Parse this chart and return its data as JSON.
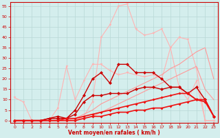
{
  "xlabel": "Vent moyen/en rafales ( km/h )",
  "ylabel": "",
  "background_color": "#d4eeed",
  "grid_color": "#b8d8d5",
  "xlim": [
    -0.5,
    23.5
  ],
  "ylim": [
    -1,
    57
  ],
  "yticks": [
    0,
    5,
    10,
    15,
    20,
    25,
    30,
    35,
    40,
    45,
    50,
    55
  ],
  "xticks": [
    0,
    1,
    2,
    3,
    4,
    5,
    6,
    7,
    8,
    9,
    10,
    11,
    12,
    13,
    14,
    15,
    16,
    17,
    18,
    19,
    20,
    21,
    22,
    23
  ],
  "lines": [
    {
      "x": [
        0,
        1,
        2,
        3,
        4,
        5,
        6,
        7,
        8,
        9,
        10,
        11,
        12,
        13,
        14,
        15,
        16,
        17,
        18,
        19,
        20,
        21,
        22,
        23
      ],
      "y": [
        0,
        0,
        0,
        0,
        0,
        0,
        0,
        0,
        2,
        9,
        40,
        46,
        55,
        56,
        44,
        41,
        42,
        44,
        35,
        40,
        39,
        25,
        0,
        0
      ],
      "color": "#ffb3b3",
      "lw": 0.8,
      "marker": "v",
      "ms": 2.5,
      "alpha": 1.0
    },
    {
      "x": [
        0,
        1,
        2,
        3,
        4,
        5,
        6,
        7,
        8,
        9,
        10,
        11,
        12,
        13,
        14,
        15,
        16,
        17,
        18,
        19,
        20,
        21,
        22,
        23
      ],
      "y": [
        11,
        9,
        0,
        0,
        0,
        6,
        26,
        10,
        19,
        27,
        27,
        24,
        22,
        23,
        22,
        21,
        22,
        20,
        35,
        16,
        10,
        19,
        0,
        0
      ],
      "color": "#ffb3b3",
      "lw": 0.8,
      "marker": "v",
      "ms": 2.5,
      "alpha": 1.0
    },
    {
      "x": [
        0,
        1,
        2,
        3,
        4,
        5,
        6,
        7,
        8,
        9,
        10,
        11,
        12,
        13,
        14,
        15,
        16,
        17,
        18,
        19,
        20,
        21,
        22,
        23
      ],
      "y": [
        0,
        0,
        0,
        0,
        0,
        0,
        0,
        1,
        3,
        5,
        8,
        10,
        12,
        14,
        16,
        18,
        20,
        22,
        25,
        27,
        30,
        33,
        35,
        20
      ],
      "color": "#ff9999",
      "lw": 0.8,
      "marker": null,
      "ms": 0,
      "alpha": 1.0
    },
    {
      "x": [
        0,
        1,
        2,
        3,
        4,
        5,
        6,
        7,
        8,
        9,
        10,
        11,
        12,
        13,
        14,
        15,
        16,
        17,
        18,
        19,
        20,
        21,
        22,
        23
      ],
      "y": [
        0,
        0,
        0,
        0,
        0,
        0,
        0,
        0,
        1,
        2,
        4,
        6,
        8,
        10,
        12,
        14,
        16,
        18,
        20,
        22,
        24,
        26,
        15,
        10
      ],
      "color": "#ff9999",
      "lw": 0.8,
      "marker": null,
      "ms": 0,
      "alpha": 1.0
    },
    {
      "x": [
        0,
        1,
        2,
        3,
        4,
        5,
        6,
        7,
        8,
        9,
        10,
        11,
        12,
        13,
        14,
        15,
        16,
        17,
        18,
        19,
        20,
        21,
        22,
        23
      ],
      "y": [
        0,
        0,
        0,
        0,
        1,
        1,
        1,
        5,
        12,
        20,
        23,
        18,
        27,
        27,
        23,
        23,
        23,
        20,
        16,
        16,
        13,
        16,
        10,
        2
      ],
      "color": "#cc0000",
      "lw": 1.0,
      "marker": "D",
      "ms": 2.5,
      "alpha": 1.0
    },
    {
      "x": [
        0,
        1,
        2,
        3,
        4,
        5,
        6,
        7,
        8,
        9,
        10,
        11,
        12,
        13,
        14,
        15,
        16,
        17,
        18,
        19,
        20,
        21,
        22,
        23
      ],
      "y": [
        0,
        0,
        0,
        0,
        1,
        2,
        1,
        3,
        9,
        12,
        12,
        13,
        13,
        13,
        15,
        16,
        16,
        15,
        16,
        16,
        13,
        10,
        10,
        2
      ],
      "color": "#cc0000",
      "lw": 1.0,
      "marker": "D",
      "ms": 2.5,
      "alpha": 1.0
    },
    {
      "x": [
        0,
        1,
        2,
        3,
        4,
        5,
        6,
        7,
        8,
        9,
        10,
        11,
        12,
        13,
        14,
        15,
        16,
        17,
        18,
        19,
        20,
        21,
        22,
        23
      ],
      "y": [
        0,
        0,
        0,
        0,
        0,
        0,
        1,
        1,
        2,
        3,
        4,
        5,
        6,
        7,
        8,
        9,
        10,
        11,
        12,
        13,
        13,
        10,
        10,
        2
      ],
      "color": "#ee1111",
      "lw": 1.2,
      "marker": "D",
      "ms": 2.0,
      "alpha": 1.0
    },
    {
      "x": [
        0,
        1,
        2,
        3,
        4,
        5,
        6,
        7,
        8,
        9,
        10,
        11,
        12,
        13,
        14,
        15,
        16,
        17,
        18,
        19,
        20,
        21,
        22,
        23
      ],
      "y": [
        0,
        0,
        0,
        0,
        0,
        0,
        0,
        0,
        1,
        2,
        2,
        3,
        4,
        4,
        5,
        5,
        6,
        6,
        7,
        8,
        9,
        10,
        9,
        2
      ],
      "color": "#ee1111",
      "lw": 1.2,
      "marker": "D",
      "ms": 2.0,
      "alpha": 1.0
    }
  ]
}
